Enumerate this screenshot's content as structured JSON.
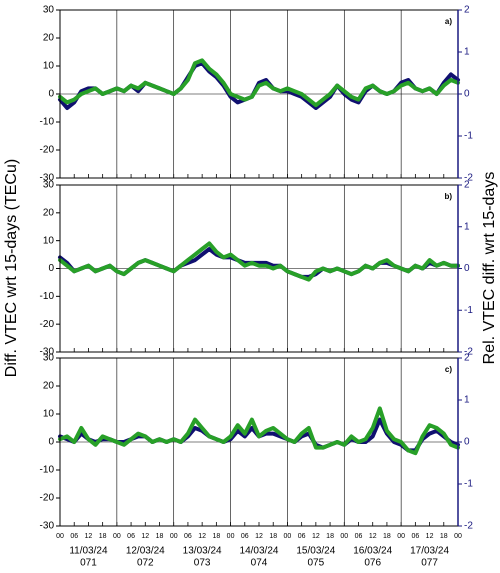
{
  "ylabel": "Diff. VTEC wrt 15-days (TECu)",
  "y2label": "Rel. VTEC diff. wrt 15-days",
  "chart_data": [
    {
      "type": "line",
      "panel_label": "a)",
      "x": [
        0,
        3,
        6,
        9,
        12,
        15,
        18,
        21,
        24,
        27,
        30,
        33,
        36,
        39,
        42,
        45,
        48,
        51,
        54,
        57,
        60,
        63,
        66,
        69,
        72,
        75,
        78,
        81,
        84,
        87,
        90,
        93,
        96,
        99,
        102,
        105,
        108,
        111,
        114,
        117,
        120,
        123,
        126,
        129,
        132,
        135,
        138,
        141,
        144,
        147,
        150,
        153,
        156,
        159,
        162,
        165,
        168
      ],
      "xlim": [
        0,
        168
      ],
      "xticks": [
        0,
        6,
        12,
        18,
        24,
        30,
        36,
        42,
        48,
        54,
        60,
        66,
        72,
        78,
        84,
        90,
        96,
        102,
        108,
        114,
        120,
        126,
        132,
        138,
        144,
        150,
        156,
        162,
        168
      ],
      "ylim": [
        -30,
        30
      ],
      "yticks": [
        -30,
        -20,
        -10,
        0,
        10,
        20,
        30
      ],
      "y2lim": [
        -2,
        2
      ],
      "y2ticks": [
        -2,
        -1,
        0,
        1,
        2
      ],
      "hline": 0,
      "series": [
        {
          "name": "navy",
          "color": "#101070",
          "values": [
            -2,
            -5,
            -3,
            1,
            2,
            2,
            0,
            1,
            2,
            1,
            3,
            1,
            4,
            3,
            2,
            1,
            0,
            2,
            6,
            10,
            11,
            8,
            6,
            3,
            -1,
            -3,
            -2,
            -1,
            4,
            5,
            2,
            1,
            1,
            0,
            -1,
            -3,
            -5,
            -3,
            -1,
            3,
            0,
            -2,
            -3,
            1,
            3,
            1,
            0,
            1,
            4,
            5,
            2,
            1,
            2,
            0,
            4,
            7,
            5
          ]
        },
        {
          "name": "green",
          "color": "#28a028",
          "values": [
            -1,
            -3,
            -2,
            0,
            1,
            2,
            0,
            1,
            2,
            1,
            3,
            2,
            4,
            3,
            2,
            1,
            0,
            2,
            5,
            11,
            12,
            9,
            7,
            4,
            0,
            -1,
            -2,
            -1,
            3,
            4,
            2,
            1,
            2,
            1,
            0,
            -2,
            -4,
            -2,
            0,
            3,
            1,
            -1,
            -2,
            2,
            3,
            1,
            0,
            1,
            3,
            4,
            2,
            1,
            2,
            0,
            3,
            5,
            4
          ]
        }
      ]
    },
    {
      "type": "line",
      "panel_label": "b)",
      "x": [
        0,
        3,
        6,
        9,
        12,
        15,
        18,
        21,
        24,
        27,
        30,
        33,
        36,
        39,
        42,
        45,
        48,
        51,
        54,
        57,
        60,
        63,
        66,
        69,
        72,
        75,
        78,
        81,
        84,
        87,
        90,
        93,
        96,
        99,
        102,
        105,
        108,
        111,
        114,
        117,
        120,
        123,
        126,
        129,
        132,
        135,
        138,
        141,
        144,
        147,
        150,
        153,
        156,
        159,
        162,
        165,
        168
      ],
      "xlim": [
        0,
        168
      ],
      "xticks": [
        0,
        6,
        12,
        18,
        24,
        30,
        36,
        42,
        48,
        54,
        60,
        66,
        72,
        78,
        84,
        90,
        96,
        102,
        108,
        114,
        120,
        126,
        132,
        138,
        144,
        150,
        156,
        162,
        168
      ],
      "ylim": [
        -30,
        30
      ],
      "yticks": [
        -30,
        -20,
        -10,
        0,
        10,
        20,
        30
      ],
      "y2lim": [
        -2,
        2
      ],
      "y2ticks": [
        -2,
        -1,
        0,
        1,
        2
      ],
      "hline": 0,
      "series": [
        {
          "name": "navy",
          "color": "#101070",
          "values": [
            4,
            2,
            -1,
            0,
            1,
            -1,
            0,
            1,
            -1,
            -2,
            0,
            2,
            3,
            2,
            1,
            0,
            -1,
            1,
            2,
            3,
            5,
            7,
            5,
            4,
            4,
            3,
            2,
            2,
            2,
            2,
            1,
            1,
            -1,
            -2,
            -3,
            -3,
            -2,
            0,
            -1,
            0,
            -1,
            -2,
            -1,
            1,
            0,
            2,
            2,
            1,
            0,
            -1,
            1,
            0,
            2,
            1,
            2,
            1,
            1
          ]
        },
        {
          "name": "green",
          "color": "#28a028",
          "values": [
            3,
            1,
            -1,
            0,
            1,
            -1,
            0,
            1,
            -1,
            -2,
            0,
            2,
            3,
            2,
            1,
            0,
            -1,
            1,
            3,
            5,
            7,
            9,
            6,
            4,
            5,
            3,
            1,
            2,
            1,
            1,
            0,
            1,
            -1,
            -2,
            -3,
            -4,
            -1,
            0,
            -1,
            0,
            -1,
            -2,
            -1,
            1,
            0,
            2,
            3,
            1,
            0,
            -1,
            1,
            0,
            3,
            1,
            2,
            1,
            1
          ]
        }
      ]
    },
    {
      "type": "line",
      "panel_label": "c)",
      "x": [
        0,
        3,
        6,
        9,
        12,
        15,
        18,
        21,
        24,
        27,
        30,
        33,
        36,
        39,
        42,
        45,
        48,
        51,
        54,
        57,
        60,
        63,
        66,
        69,
        72,
        75,
        78,
        81,
        84,
        87,
        90,
        93,
        96,
        99,
        102,
        105,
        108,
        111,
        114,
        117,
        120,
        123,
        126,
        129,
        132,
        135,
        138,
        141,
        144,
        147,
        150,
        153,
        156,
        159,
        162,
        165,
        168
      ],
      "xlim": [
        0,
        168
      ],
      "xticks": [
        {
          "value": 0,
          "label": "00"
        },
        {
          "value": 6,
          "label": "06"
        },
        {
          "value": 12,
          "label": "12"
        },
        {
          "value": 18,
          "label": "18"
        },
        {
          "value": 24,
          "label": "00"
        },
        {
          "value": 30,
          "label": "06"
        },
        {
          "value": 36,
          "label": "12"
        },
        {
          "value": 42,
          "label": "18"
        },
        {
          "value": 48,
          "label": "00"
        },
        {
          "value": 54,
          "label": "06"
        },
        {
          "value": 60,
          "label": "12"
        },
        {
          "value": 66,
          "label": "18"
        },
        {
          "value": 72,
          "label": "00"
        },
        {
          "value": 78,
          "label": "06"
        },
        {
          "value": 84,
          "label": "12"
        },
        {
          "value": 90,
          "label": "18"
        },
        {
          "value": 96,
          "label": "00"
        },
        {
          "value": 102,
          "label": "06"
        },
        {
          "value": 108,
          "label": "12"
        },
        {
          "value": 114,
          "label": "18"
        },
        {
          "value": 120,
          "label": "00"
        },
        {
          "value": 126,
          "label": "06"
        },
        {
          "value": 132,
          "label": "12"
        },
        {
          "value": 138,
          "label": "18"
        },
        {
          "value": 144,
          "label": "00"
        },
        {
          "value": 150,
          "label": "06"
        },
        {
          "value": 156,
          "label": "12"
        },
        {
          "value": 162,
          "label": "18"
        },
        {
          "value": 168,
          "label": "00"
        }
      ],
      "ylim": [
        -30,
        30
      ],
      "yticks": [
        -30,
        -20,
        -10,
        0,
        10,
        20,
        30
      ],
      "y2lim": [
        -2,
        2
      ],
      "y2ticks": [
        -2,
        -1,
        0,
        1,
        2
      ],
      "hline": 0,
      "day_labels": [
        {
          "date": "11/03/24",
          "doy": "071"
        },
        {
          "date": "12/03/24",
          "doy": "072"
        },
        {
          "date": "13/03/24",
          "doy": "073"
        },
        {
          "date": "14/03/24",
          "doy": "074"
        },
        {
          "date": "15/03/24",
          "doy": "075"
        },
        {
          "date": "16/03/24",
          "doy": "076"
        },
        {
          "date": "17/03/24",
          "doy": "077"
        }
      ],
      "series": [
        {
          "name": "navy",
          "color": "#101070",
          "values": [
            2,
            1,
            0,
            3,
            1,
            0,
            1,
            1,
            0,
            0,
            1,
            2,
            2,
            0,
            1,
            0,
            1,
            0,
            2,
            5,
            4,
            2,
            1,
            0,
            1,
            4,
            2,
            5,
            2,
            3,
            3,
            2,
            1,
            0,
            2,
            3,
            -1,
            -2,
            -1,
            0,
            -1,
            1,
            0,
            0,
            2,
            8,
            3,
            0,
            -1,
            -3,
            -3,
            1,
            3,
            4,
            2,
            0,
            -1
          ]
        },
        {
          "name": "green",
          "color": "#28a028",
          "values": [
            1,
            2,
            0,
            5,
            1,
            -1,
            2,
            1,
            0,
            -1,
            1,
            3,
            2,
            0,
            1,
            0,
            1,
            0,
            3,
            8,
            5,
            2,
            1,
            0,
            2,
            6,
            3,
            8,
            2,
            4,
            5,
            3,
            1,
            0,
            3,
            5,
            -2,
            -2,
            -1,
            0,
            -1,
            2,
            0,
            1,
            5,
            12,
            4,
            1,
            0,
            -3,
            -4,
            2,
            6,
            5,
            3,
            -1,
            -2
          ]
        }
      ]
    }
  ]
}
